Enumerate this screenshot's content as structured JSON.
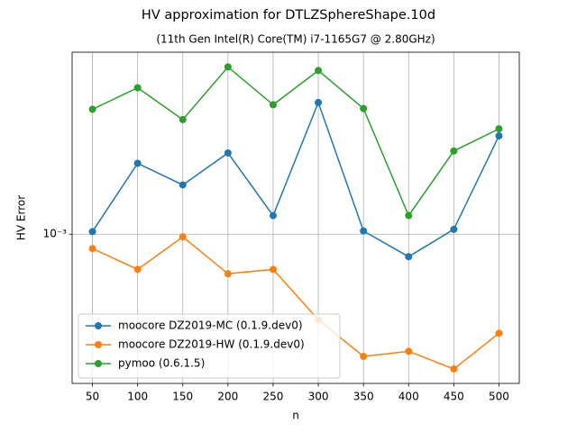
{
  "chart_data": {
    "type": "line",
    "title": "HV approximation for DTLZSphereShape.10d",
    "subtitle": "(11th Gen Intel(R) Core(TM) i7-1165G7 @ 2.80GHz)",
    "x_label": "n",
    "y_label": "HV Error",
    "x": [
      50,
      100,
      150,
      200,
      250,
      300,
      350,
      400,
      450,
      500
    ],
    "series": [
      {
        "name": "moocore DZ2019-MC (0.1.9.dev0)",
        "color": "#1f77b4",
        "values": [
          0.001016,
          0.00154,
          0.00135,
          0.00164,
          0.00112,
          0.00223,
          0.00102,
          0.000872,
          0.00103,
          0.00182
        ]
      },
      {
        "name": "moocore DZ2019-HW (0.1.9.dev0)",
        "color": "#ff7f0e",
        "values": [
          0.000916,
          0.000807,
          0.000984,
          0.000786,
          0.000807,
          0.000594,
          0.000475,
          0.00049,
          0.00044,
          0.000547
        ]
      },
      {
        "name": "pymoo (0.6.1.5)",
        "color": "#2ca02c",
        "values": [
          0.00214,
          0.00244,
          0.00201,
          0.00277,
          0.0022,
          0.00271,
          0.00215,
          0.00112,
          0.00166,
          0.0019
        ]
      }
    ],
    "xlim": [
      27.5,
      522.5
    ],
    "xticks": [
      50,
      100,
      150,
      200,
      250,
      300,
      350,
      400,
      450,
      500
    ],
    "ylim": [
      0.000403,
      0.00303
    ],
    "yticks": [
      {
        "value": 0.001,
        "label": "10⁻³"
      }
    ],
    "log_y": true,
    "grid": true,
    "legend": "lower left"
  }
}
